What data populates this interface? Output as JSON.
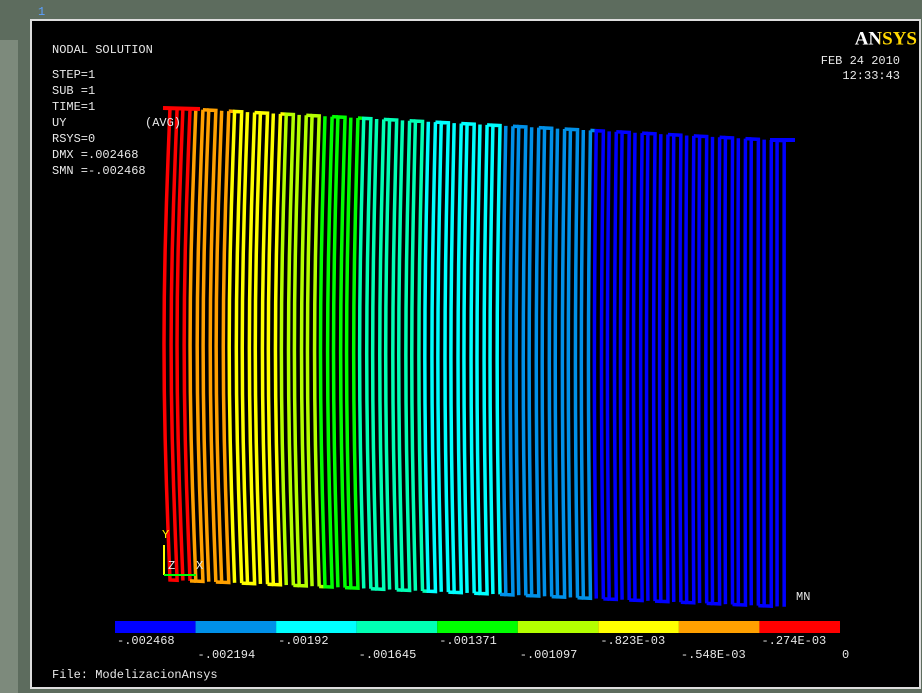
{
  "viewport_number": "1",
  "title": "NODAL SOLUTION",
  "info": [
    "STEP=1",
    "SUB =1",
    "TIME=1",
    "UY",
    "RSYS=0",
    "DMX =.002468",
    "SMN =-.002468"
  ],
  "avg": "(AVG)",
  "logo": "ANSYS",
  "date": "FEB 24 2010",
  "time": "12:33:43",
  "min_label": "MN",
  "triad": [
    "Y",
    "Z",
    "X"
  ],
  "legend": {
    "colors": [
      "#0000ff",
      "#0090e8",
      "#00ffff",
      "#00ffb4",
      "#00ff00",
      "#b4ff00",
      "#ffff00",
      "#ffa000",
      "#ff0000"
    ],
    "labels": [
      "-.002468",
      "-.002194",
      "-.00192",
      "-.001645",
      "-.001371",
      "-.001097",
      "-.823E-03",
      "-.548E-03",
      "-.274E-03",
      "0"
    ]
  },
  "file": "File: ModelizacionAnsys"
}
